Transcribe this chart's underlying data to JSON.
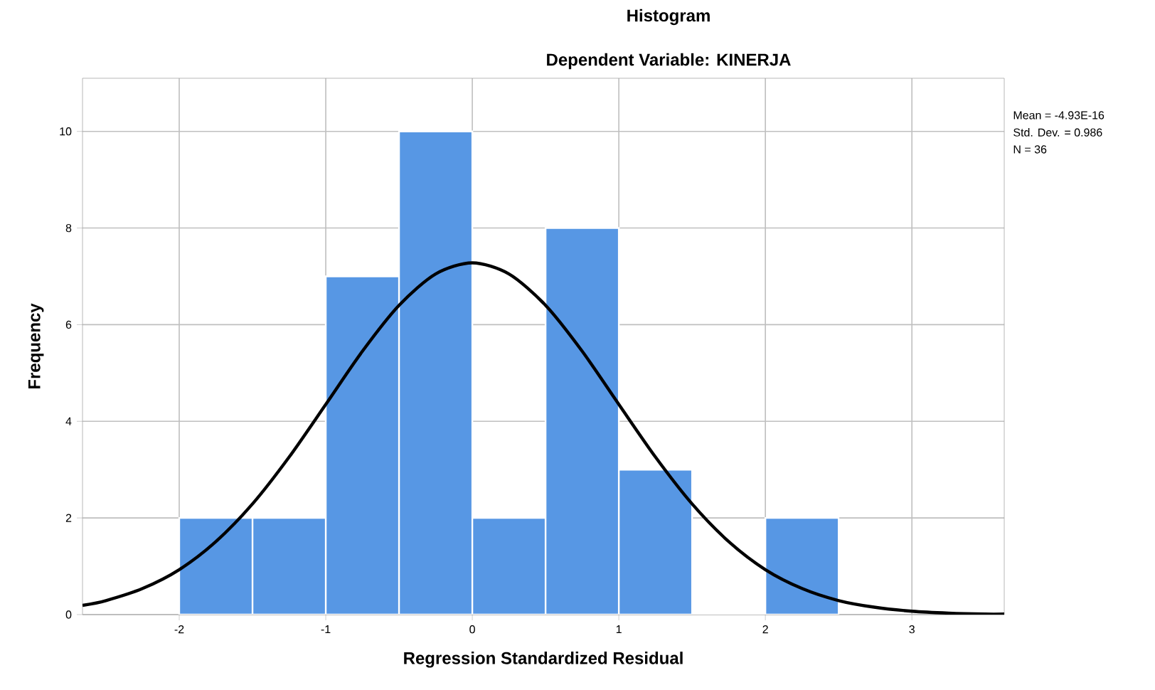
{
  "chart_data": {
    "type": "histogram",
    "title": "Histogram",
    "subtitle": "Dependent Variable: KINERJA",
    "xlabel": "Regression Standardized Residual",
    "ylabel": "Frequency",
    "annotations": [
      "Mean = -4.93E-16",
      "Std. Dev. = 0.986",
      "N = 36"
    ],
    "xlim": [
      -2.66,
      3.63
    ],
    "ylim": [
      0,
      11.1
    ],
    "xticks": [
      -2,
      -1,
      0,
      1,
      2,
      3
    ],
    "yticks": [
      0,
      2,
      4,
      6,
      8,
      10
    ],
    "grid": true,
    "series": [
      {
        "color": "#5797e4",
        "bins": [
          -2,
          -1.5,
          -1,
          -0.5,
          0,
          0.5,
          1,
          1.5,
          2,
          2.5
        ],
        "values": [
          2,
          2,
          7,
          10,
          2,
          8,
          3,
          0,
          2
        ]
      },
      {
        "type": "line",
        "color": "#000000",
        "x": [
          -2.66,
          -2.5,
          -2.25,
          -2,
          -1.75,
          -1.5,
          -1.25,
          -1,
          -0.75,
          -0.5,
          -0.25,
          0,
          0.25,
          0.5,
          0.75,
          1,
          1.25,
          1.5,
          1.75,
          2,
          2.25,
          2.5,
          2.75,
          3,
          3.25,
          3.5,
          3.63
        ],
        "values": [
          0.19,
          0.29,
          0.54,
          0.93,
          1.51,
          2.29,
          3.26,
          4.35,
          5.45,
          6.4,
          7.05,
          7.28,
          7.05,
          6.4,
          5.45,
          4.35,
          3.26,
          2.29,
          1.51,
          0.93,
          0.54,
          0.29,
          0.15,
          0.07,
          0.03,
          0.01,
          0.01
        ]
      }
    ]
  }
}
